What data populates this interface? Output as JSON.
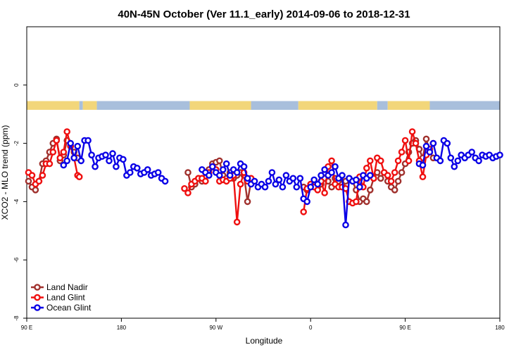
{
  "chart_data": {
    "type": "line",
    "title": "40N-45N October (Ver 11.1_early)   2014-09-06 to 2018-12-31",
    "xlabel": "Longitude",
    "ylabel": "XCO2 - MLO trend (ppm)",
    "xlim": [
      -90,
      180
    ],
    "ylim": [
      -8,
      2
    ],
    "x_ticks": [
      {
        "value": -90,
        "label": "90 E"
      },
      {
        "value": -36,
        "label": "180"
      },
      {
        "value": 18,
        "label": "90 W"
      },
      {
        "value": 72,
        "label": "0"
      },
      {
        "value": 126,
        "label": "90 E"
      },
      {
        "value": 180,
        "label": "180"
      }
    ],
    "y_ticks": [
      {
        "value": 0,
        "label": "0"
      },
      {
        "value": -2,
        "label": "-2"
      },
      {
        "value": -4,
        "label": "-4"
      },
      {
        "value": -6,
        "label": "-6"
      },
      {
        "value": -8,
        "label": "-8"
      }
    ],
    "grid": false,
    "legend_position": "bottom-left",
    "surface_band": {
      "y_range": [
        -0.55,
        -0.85
      ],
      "land_color": "#f2d67a",
      "ocean_color": "#a8bfdc",
      "segments": [
        {
          "type": "land",
          "from": -90,
          "to": -60
        },
        {
          "type": "ocean",
          "from": -60,
          "to": -58
        },
        {
          "type": "land",
          "from": -58,
          "to": -50
        },
        {
          "type": "ocean",
          "from": -50,
          "to": 3
        },
        {
          "type": "land",
          "from": 3,
          "to": 38
        },
        {
          "type": "ocean",
          "from": 38,
          "to": 65
        },
        {
          "type": "land",
          "from": 65,
          "to": 110
        },
        {
          "type": "ocean",
          "from": 110,
          "to": 116
        },
        {
          "type": "land",
          "from": 116,
          "to": 140
        },
        {
          "type": "ocean",
          "from": 140,
          "to": 180
        }
      ]
    },
    "series": [
      {
        "name": "Land Nadir",
        "color": "#a0312d",
        "x": [
          -89,
          -87,
          -85,
          -83,
          -81,
          -79,
          -77,
          -75,
          -73,
          -71,
          -69,
          -67,
          -65,
          -63,
          -61,
          2,
          4,
          6,
          8,
          10,
          12,
          14,
          16,
          18,
          20,
          22,
          24,
          26,
          28,
          30,
          32,
          34,
          36,
          38,
          68,
          70,
          72,
          74,
          76,
          78,
          80,
          82,
          84,
          86,
          88,
          90,
          92,
          94,
          96,
          98,
          100,
          102,
          104,
          106,
          108,
          110,
          112,
          114,
          116,
          118,
          120,
          122,
          124,
          126,
          128,
          130,
          132,
          134,
          136,
          138,
          140,
          142
        ],
        "y": [
          -3.3,
          -3.5,
          -3.6,
          -3.3,
          -2.7,
          -2.6,
          -2.3,
          -2.0,
          -1.85,
          -2.6,
          -2.4,
          -1.9,
          -2.1,
          -2.3,
          -2.5,
          -3.0,
          -3.5,
          -3.4,
          -3.2,
          -3.3,
          -3.0,
          -2.9,
          -2.7,
          -2.65,
          -2.6,
          -3.1,
          -3.2,
          -3.0,
          -3.2,
          -3.1,
          -3.0,
          -3.1,
          -4.0,
          -3.3,
          -3.5,
          -3.6,
          -3.5,
          -3.4,
          -3.5,
          -3.4,
          -3.2,
          -3.3,
          -3.5,
          -3.2,
          -3.3,
          -3.4,
          -3.3,
          -3.2,
          -3.3,
          -3.6,
          -4.0,
          -3.9,
          -4.0,
          -3.6,
          -3.2,
          -3.0,
          -3.2,
          -3.0,
          -3.3,
          -3.5,
          -3.6,
          -3.3,
          -3.0,
          -2.7,
          -2.3,
          -2.0,
          -1.9,
          -2.2,
          -2.5,
          -1.85,
          -2.3,
          -2.5
        ]
      },
      {
        "name": "Land Glint",
        "color": "#ef0f0f",
        "x": [
          -89,
          -87,
          -85,
          -83,
          -81,
          -79,
          -77,
          -75,
          -73,
          -71,
          -69,
          -67,
          -65,
          -63,
          -61,
          -60,
          0,
          2,
          4,
          6,
          8,
          10,
          12,
          14,
          16,
          18,
          20,
          22,
          24,
          26,
          28,
          30,
          32,
          34,
          36,
          38,
          68,
          70,
          72,
          74,
          76,
          78,
          80,
          82,
          84,
          86,
          88,
          90,
          92,
          94,
          96,
          98,
          100,
          102,
          104,
          106,
          108,
          110,
          112,
          114,
          116,
          118,
          120,
          122,
          124,
          126,
          128,
          130,
          132,
          134,
          136,
          138,
          140,
          142
        ],
        "y": [
          -3.0,
          -3.1,
          -3.4,
          -3.3,
          -3.1,
          -2.7,
          -2.7,
          -2.3,
          -1.9,
          -2.5,
          -2.3,
          -1.6,
          -2.1,
          -2.5,
          -3.1,
          -3.15,
          -3.55,
          -3.7,
          -3.4,
          -3.3,
          -3.2,
          -3.2,
          -3.3,
          -3.0,
          -2.8,
          -2.9,
          -3.3,
          -3.25,
          -3.3,
          -3.2,
          -3.1,
          -4.7,
          -3.4,
          -3.0,
          -3.3,
          -3.2,
          -4.35,
          -3.55,
          -3.4,
          -3.5,
          -3.6,
          -3.3,
          -3.7,
          -2.8,
          -2.6,
          -3.4,
          -3.5,
          -3.5,
          -3.55,
          -4.0,
          -4.05,
          -4.0,
          -3.15,
          -3.5,
          -2.85,
          -2.6,
          -3.2,
          -2.5,
          -2.6,
          -3.0,
          -3.1,
          -3.3,
          -3.0,
          -2.6,
          -2.3,
          -1.9,
          -2.6,
          -1.6,
          -2.0,
          -2.6,
          -3.15,
          -2.4,
          -2.2,
          -2.0
        ]
      },
      {
        "name": "Ocean Glint",
        "color": "#0a00e6",
        "x": [
          -69,
          -67,
          -65,
          -63,
          -61,
          -59,
          -57,
          -55,
          -53,
          -51,
          -49,
          -47,
          -45,
          -43,
          -41,
          -39,
          -37,
          -35,
          -33,
          -31,
          -29,
          -27,
          -25,
          -23,
          -21,
          -19,
          -17,
          -15,
          -13,
          -11,
          10,
          12,
          14,
          16,
          18,
          20,
          22,
          24,
          26,
          28,
          30,
          32,
          34,
          36,
          38,
          40,
          42,
          44,
          46,
          48,
          50,
          52,
          54,
          56,
          58,
          60,
          62,
          64,
          66,
          68,
          70,
          72,
          74,
          76,
          78,
          80,
          82,
          84,
          86,
          88,
          90,
          92,
          94,
          96,
          98,
          100,
          102,
          104,
          106,
          134,
          136,
          138,
          140,
          142,
          144,
          146,
          148,
          150,
          152,
          154,
          156,
          158,
          160,
          162,
          164,
          166,
          168,
          170,
          172,
          174,
          176,
          178,
          180
        ],
        "y": [
          -2.75,
          -2.6,
          -2.0,
          -2.5,
          -2.1,
          -2.6,
          -1.9,
          -1.9,
          -2.4,
          -2.8,
          -2.5,
          -2.45,
          -2.4,
          -2.6,
          -2.35,
          -2.8,
          -2.5,
          -2.55,
          -3.1,
          -3.0,
          -2.8,
          -2.85,
          -3.05,
          -3.0,
          -2.9,
          -3.1,
          -3.05,
          -3.0,
          -3.2,
          -3.3,
          -2.9,
          -3.0,
          -3.1,
          -2.8,
          -3.0,
          -3.1,
          -2.9,
          -2.7,
          -3.1,
          -2.9,
          -3.0,
          -2.7,
          -2.8,
          -3.2,
          -3.4,
          -3.3,
          -3.5,
          -3.4,
          -3.5,
          -3.3,
          -3.0,
          -3.4,
          -3.25,
          -3.5,
          -3.1,
          -3.3,
          -3.2,
          -3.5,
          -3.2,
          -3.9,
          -4.0,
          -3.5,
          -3.25,
          -3.4,
          -3.1,
          -2.9,
          -3.1,
          -3.0,
          -2.8,
          -3.2,
          -3.1,
          -4.8,
          -3.2,
          -3.3,
          -3.25,
          -3.5,
          -3.1,
          -3.2,
          -3.1,
          -2.7,
          -2.75,
          -2.1,
          -2.3,
          -2.0,
          -2.5,
          -2.6,
          -1.9,
          -2.0,
          -2.5,
          -2.8,
          -2.6,
          -2.4,
          -2.5,
          -2.4,
          -2.3,
          -2.5,
          -2.6,
          -2.4,
          -2.45,
          -2.4,
          -2.5,
          -2.45,
          -2.4
        ]
      }
    ]
  }
}
